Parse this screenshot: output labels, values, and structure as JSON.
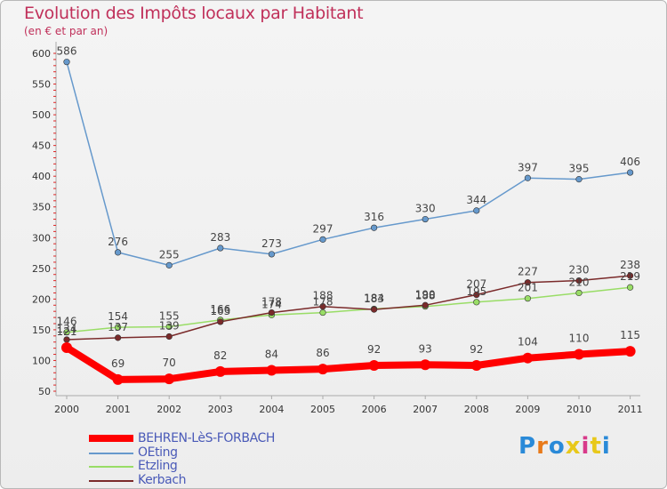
{
  "chart_data": {
    "type": "line",
    "title": "Evolution des Impôts locaux par Habitant",
    "subtitle": "(en € et par an)",
    "xlabel": "",
    "ylabel": "",
    "ylim": [
      50,
      600
    ],
    "yticks": [
      50,
      100,
      150,
      200,
      250,
      300,
      350,
      400,
      450,
      500,
      550,
      600
    ],
    "categories": [
      "2000",
      "2001",
      "2002",
      "2003",
      "2004",
      "2005",
      "2006",
      "2007",
      "2008",
      "2009",
      "2010",
      "2011"
    ],
    "series": [
      {
        "name": "BEHREN-LèS-FORBACH",
        "color": "#ff0000",
        "values": [
          121,
          69,
          70,
          82,
          84,
          86,
          92,
          93,
          92,
          104,
          110,
          115
        ],
        "labels": [
          "121",
          "69",
          "70",
          "82",
          "84",
          "86",
          "92",
          "93",
          "92",
          "104",
          "110",
          "115"
        ]
      },
      {
        "name": "OEting",
        "color": "#6699cc",
        "values": [
          586,
          276,
          255,
          283,
          273,
          297,
          316,
          330,
          344,
          397,
          395,
          406
        ],
        "labels": [
          "586",
          "276",
          "255",
          "283",
          "273",
          "297",
          "316",
          "330",
          "344",
          "397",
          "395",
          "406"
        ]
      },
      {
        "name": "Etzling",
        "color": "#99dd66",
        "values": [
          146,
          154,
          155,
          166,
          174,
          178,
          184,
          188,
          195,
          201,
          210,
          219
        ],
        "labels": [
          "146",
          "154",
          "155",
          "166",
          "174",
          "178",
          "184",
          "188",
          "195",
          "201",
          "210",
          "219"
        ]
      },
      {
        "name": "Kerbach",
        "color": "#7a2a2a",
        "values": [
          134,
          137,
          139,
          163,
          178,
          188,
          183,
          190,
          207,
          227,
          230,
          238
        ],
        "labels": [
          "134",
          "137",
          "139",
          "163",
          "178",
          "188",
          "183",
          "190",
          "207",
          "227",
          "230",
          "238"
        ]
      }
    ],
    "legend_position": "bottom-left"
  },
  "logo": {
    "text_parts": [
      "P",
      "r",
      "o",
      "x",
      "i",
      "t",
      "i"
    ],
    "colors": [
      "#2a8ad8",
      "#e87a1a",
      "#2a8ad8",
      "#e8c81a",
      "#d83a8a",
      "#e8c81a",
      "#2a8ad8"
    ]
  }
}
